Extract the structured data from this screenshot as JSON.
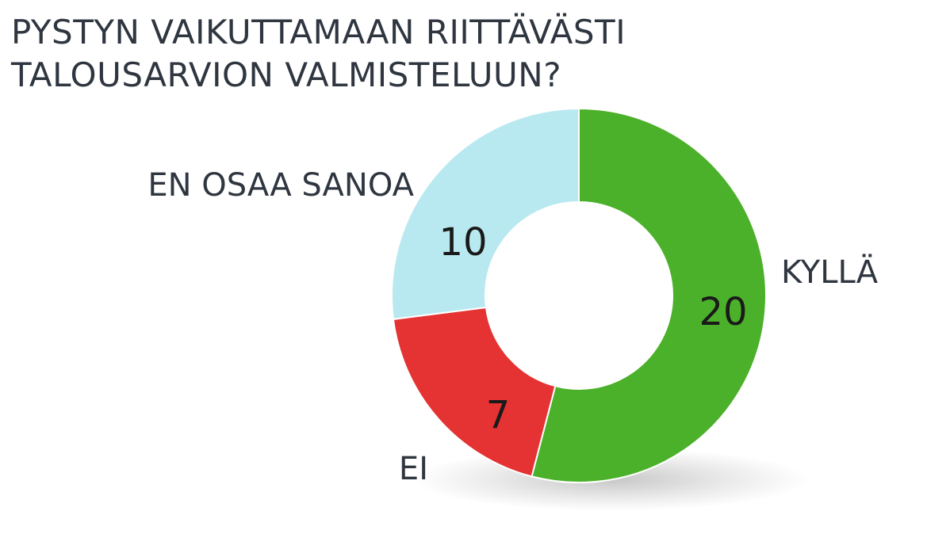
{
  "chart_data": {
    "type": "pie",
    "variant": "donut",
    "title_lines": [
      "PYSTYN VAIKUTTAMAAN RIITTÄVÄSTI",
      "TALOUSARVION VALMISTELUUN?"
    ],
    "slices": [
      {
        "label": "KYLLÄ",
        "value": 20,
        "color": "#4cb12a"
      },
      {
        "label": "EI",
        "value": 7,
        "color": "#e53232"
      },
      {
        "label": "EN OSAA SANOA",
        "value": 10,
        "color": "#b9e9f0"
      }
    ]
  }
}
